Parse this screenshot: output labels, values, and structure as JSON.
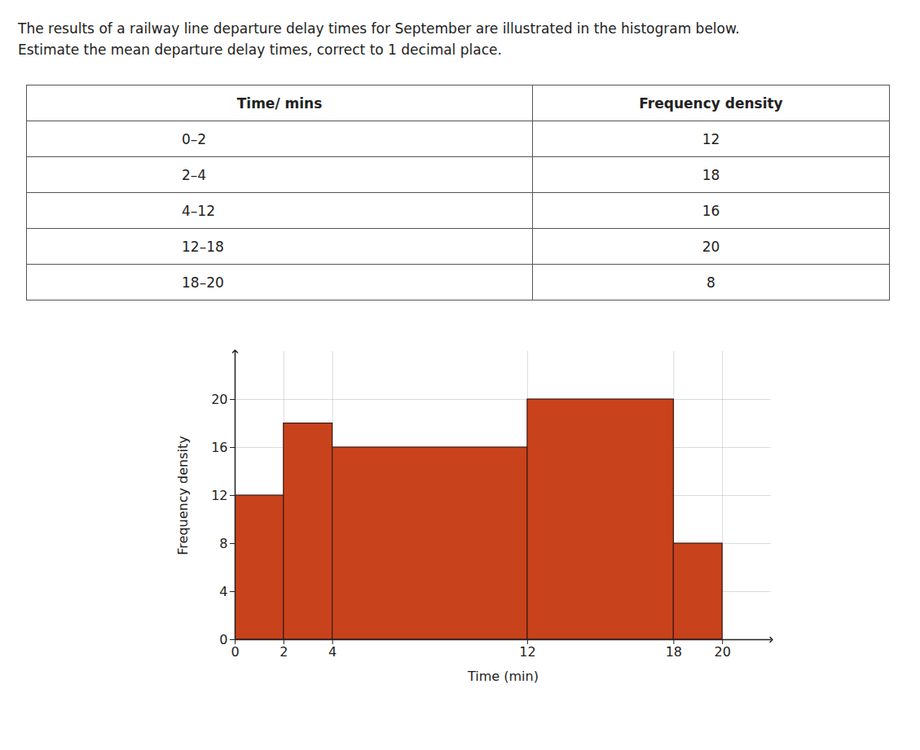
{
  "question": [
    "The results of a railway line departure delay times for September are illustrated in the histogram below.",
    "Estimate the mean departure delay times, correct to 1 decimal place."
  ],
  "table": {
    "header": [
      "Time/ mins",
      "Frequency density"
    ],
    "rows": [
      [
        "0–2",
        "12"
      ],
      [
        "2–4",
        "18"
      ],
      [
        "4–12",
        "16"
      ],
      [
        "12–18",
        "20"
      ],
      [
        "18–20",
        "8"
      ]
    ]
  },
  "chart_data": {
    "type": "histogram",
    "x_label": "Time (min)",
    "y_label": "Frequency density",
    "bins": [
      0,
      2,
      4,
      12,
      18,
      20
    ],
    "values": [
      12,
      18,
      16,
      20,
      8
    ],
    "color": "#c8421c",
    "xlim": [
      0,
      22
    ],
    "xticks": [
      0,
      2,
      4,
      12,
      18,
      20
    ],
    "ylim": [
      0,
      24
    ],
    "yticks": [
      0,
      4,
      8,
      12,
      16,
      20
    ],
    "grid": true
  }
}
